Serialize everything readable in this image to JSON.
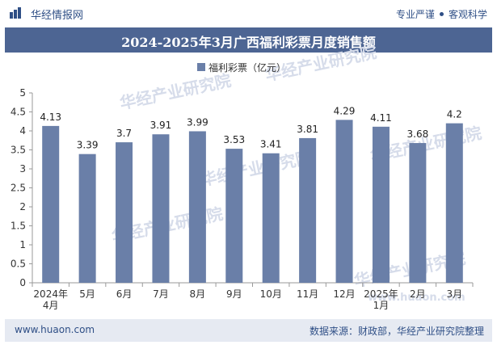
{
  "header": {
    "brand": "华经情报网",
    "tag_left": "专业严谨",
    "tag_right": "客观科学"
  },
  "watermarks": [
    "华经产业研究院",
    "www.huaon.com"
  ],
  "chart_data": {
    "type": "bar",
    "title": "2024-2025年3月广西福利彩票月度销售额",
    "legend": "福利彩票（亿元）",
    "categories": [
      "2024年\n4月",
      "5月",
      "6月",
      "7月",
      "8月",
      "9月",
      "10月",
      "11月",
      "12月",
      "2025年\n1月",
      "2月",
      "3月"
    ],
    "series": [
      {
        "name": "福利彩票（亿元）",
        "values": [
          4.13,
          3.39,
          3.7,
          3.91,
          3.99,
          3.53,
          3.41,
          3.81,
          4.29,
          4.11,
          3.68,
          4.2
        ]
      }
    ],
    "ylim": [
      0,
      5
    ],
    "yticks": [
      "0",
      "0.5",
      "1",
      "1.5",
      "2",
      "2.5",
      "3",
      "3.5",
      "4",
      "4.5",
      "5"
    ],
    "bar_color": "#6a7fa8",
    "grid": false,
    "legend_position": "top-center"
  },
  "footer": {
    "site": "www.huaon.com",
    "source": "数据来源：财政部，华经产业研究院整理"
  }
}
